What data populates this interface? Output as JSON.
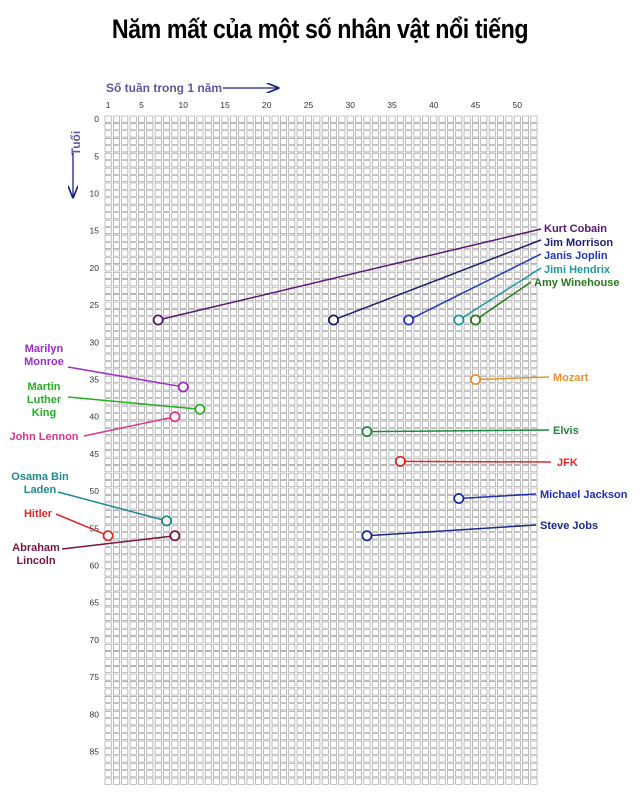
{
  "title": "Năm mất của một số nhân vật nổi tiếng",
  "chart_data": {
    "type": "scatter",
    "title": "Năm mất của một số nhân vật nổi tiếng",
    "xlabel": "Số tuần trong 1 năm",
    "ylabel": "Tuổi",
    "xlim": [
      1,
      52
    ],
    "ylim": [
      0,
      89
    ],
    "x_ticks": [
      1,
      5,
      10,
      15,
      20,
      25,
      30,
      35,
      40,
      45,
      50
    ],
    "y_ticks": [
      0,
      5,
      10,
      15,
      20,
      25,
      30,
      35,
      40,
      45,
      50,
      55,
      60,
      65,
      70,
      75,
      80,
      85
    ],
    "grid": true,
    "points": [
      {
        "name": "Kurt Cobain",
        "week": 7,
        "age": 27,
        "color": "#5b1673"
      },
      {
        "name": "Jim Morrison",
        "week": 28,
        "age": 27,
        "color": "#1b1f6b"
      },
      {
        "name": "Janis Joplin",
        "week": 37,
        "age": 27,
        "color": "#2236b8"
      },
      {
        "name": "Jimi Hendrix",
        "week": 43,
        "age": 27,
        "color": "#1a9a9c"
      },
      {
        "name": "Amy Winehouse",
        "week": 45,
        "age": 27,
        "color": "#2a7a1c"
      },
      {
        "name": "Marilyn Monroe",
        "week": 10,
        "age": 36,
        "color": "#9a2cc8"
      },
      {
        "name": "Mozart",
        "week": 45,
        "age": 35,
        "color": "#e8922a"
      },
      {
        "name": "Martin Luther King",
        "week": 12,
        "age": 39,
        "color": "#22b022"
      },
      {
        "name": "John Lennon",
        "week": 9,
        "age": 40,
        "color": "#e0338a"
      },
      {
        "name": "Elvis",
        "week": 32,
        "age": 42,
        "color": "#1e8a3c"
      },
      {
        "name": "JFK",
        "week": 36,
        "age": 46,
        "color": "#e02828"
      },
      {
        "name": "Osama Bin Laden",
        "week": 8,
        "age": 54,
        "color": "#1f8a8e"
      },
      {
        "name": "Michael Jackson",
        "week": 43,
        "age": 51,
        "color": "#1f2fb0"
      },
      {
        "name": "Hitler",
        "week": 1,
        "age": 56,
        "color": "#e02828"
      },
      {
        "name": "Abraham Lincoln",
        "week": 9,
        "age": 56,
        "color": "#7a1442"
      },
      {
        "name": "Steve Jobs",
        "week": 32,
        "age": 56,
        "color": "#1a2a8a"
      }
    ]
  }
}
